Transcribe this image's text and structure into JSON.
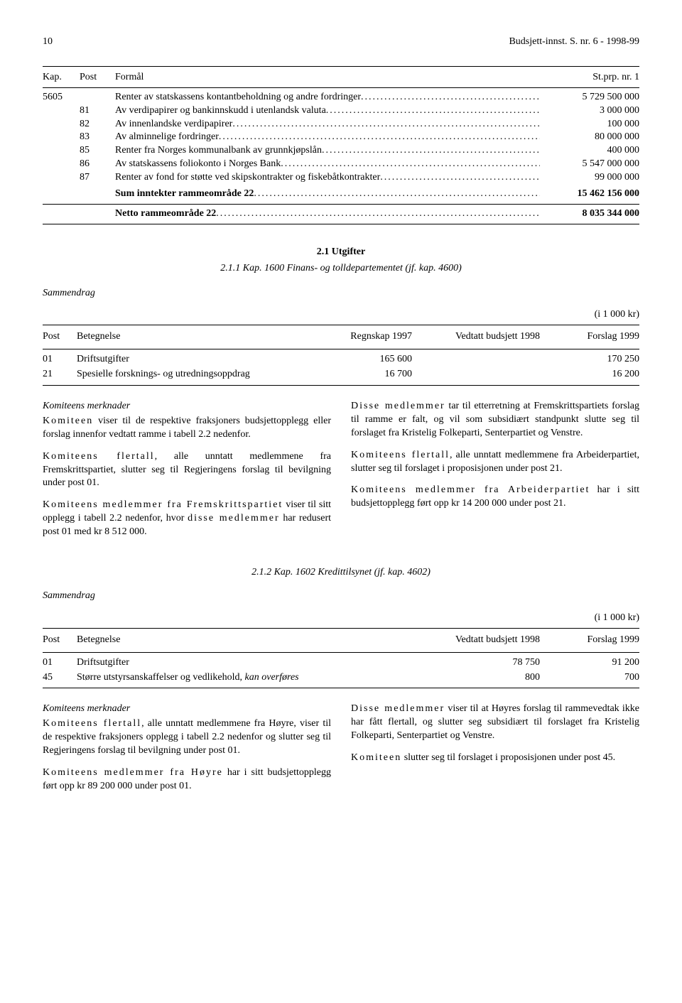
{
  "header": {
    "page_number": "10",
    "doc_title": "Budsjett-innst. S. nr. 6 - 1998-99"
  },
  "budget_table": {
    "columns": {
      "kap": "Kap.",
      "post": "Post",
      "formal": "Formål",
      "stprp": "St.prp. nr. 1"
    },
    "kap_row": {
      "kap": "5605",
      "label": "Renter av statskassens kontantbeholdning og andre fordringer",
      "amount": "5 729 500 000"
    },
    "rows": [
      {
        "post": "81",
        "label": "Av verdipapirer og bankinnskudd i utenlandsk valuta",
        "amount": "3 000 000"
      },
      {
        "post": "82",
        "label": "Av innenlandske verdipapirer",
        "amount": "100 000"
      },
      {
        "post": "83",
        "label": "Av alminnelige fordringer",
        "amount": "80 000 000"
      },
      {
        "post": "85",
        "label": "Renter fra Norges kommunalbank av grunnkjøpslån",
        "amount": "400 000"
      },
      {
        "post": "86",
        "label": "Av statskassens foliokonto i Norges Bank",
        "amount": "5 547 000 000"
      },
      {
        "post": "87",
        "label": "Renter av fond for støtte ved skipskontrakter og fiskebåtkontrakter",
        "amount": "99 000 000"
      }
    ],
    "sum_label": "Sum inntekter rammeområde 22",
    "sum_amount": "15 462 156 000",
    "netto_label": "Netto rammeområde 22",
    "netto_amount": "8 035 344 000"
  },
  "section21": {
    "heading": "2.1 Utgifter",
    "subheading": "2.1.1 Kap. 1600 Finans- og tolldepartementet (jf. kap. 4600)",
    "sammendrag": "Sammendrag",
    "unit": "(i 1 000 kr)",
    "table": {
      "cols": {
        "post": "Post",
        "bet": "Betegnelse",
        "c1": "Regnskap 1997",
        "c2": "Vedtatt budsjett 1998",
        "c3": "Forslag 1999"
      },
      "rows": [
        {
          "post": "01",
          "bet": "Driftsutgifter",
          "c1": "165 600",
          "c2": "",
          "c3": "170 250"
        },
        {
          "post": "21",
          "bet": "Spesielle forsknings- og utredningsoppdrag",
          "c1": "16 700",
          "c2": "",
          "c3": "16 200"
        }
      ]
    },
    "left": {
      "km_title": "Komiteens merknader",
      "p1a": "Komiteen",
      "p1b": " viser til de respektive fraksjoners budsjettopplegg eller forslag innenfor vedtatt ramme i tabell 2.2 nedenfor.",
      "p2a": "Komiteens flertall",
      "p2b": ", alle unntatt medlemmene fra Fremskrittspartiet, slutter seg til Regjeringens forslag til bevilgning under post 01.",
      "p3a": "Komiteens medlemmer fra Frem­skrittspartiet",
      "p3b": " viser til sitt opplegg i tabell 2.2 nedenfor, hvor ",
      "p3c": "disse medlemmer",
      "p3d": " har redusert post 01 med kr 8 512 000."
    },
    "right": {
      "p1a": "Disse medlemmer",
      "p1b": " tar til etterretning at Fremskrittspartiets forslag til ramme er falt, og vil som subsidiært standpunkt slutte seg til forslaget fra Kristelig Folkeparti, Senterpartiet og Venstre.",
      "p2a": "Komiteens flertall",
      "p2b": ", alle unntatt medlemmene fra Arbeiderpartiet, slutter seg til forslaget i proposisjonen under post 21.",
      "p3a": "Komiteens medlemmer fra Arbeiderpar­tiet",
      "p3b": " har i sitt budsjettopplegg ført opp kr 14 200 000 under post 21."
    }
  },
  "section212": {
    "heading": "2.1.2 Kap. 1602 Kredittilsynet (jf. kap. 4602)",
    "sammendrag": "Sammendrag",
    "unit": "(i 1 000 kr)",
    "table": {
      "cols": {
        "post": "Post",
        "bet": "Betegnelse",
        "c2": "Vedtatt budsjett 1998",
        "c3": "Forslag 1999"
      },
      "rows": [
        {
          "post": "01",
          "bet": "Driftsutgifter",
          "c2": "78 750",
          "c3": "91 200"
        },
        {
          "post": "45",
          "bet_a": "Større utstyrsanskaffelser og vedlikehold, ",
          "bet_b": "kan overføres",
          "c2": "800",
          "c3": "700"
        }
      ]
    },
    "left": {
      "km_title": "Komiteens merknader",
      "p1a": "Komiteens flertall",
      "p1b": ", alle unntatt medlemmene fra Høyre, viser til de respektive fraksjoners opplegg i tabell 2.2 nedenfor og slutter seg til Regjeringens forslag til bevilgning under post 01.",
      "p2a": "Komiteens medlemmer fra Høyre",
      "p2b": " har i sitt budsjettopplegg ført opp kr 89 200 000 under post 01."
    },
    "right": {
      "p1a": "Disse medlemmer",
      "p1b": " viser til at Høyres forslag til rammevedtak ikke har fått flertall, og slutter seg subsidiært til forslaget fra Kristelig Folkeparti, Senterpartiet og Venstre.",
      "p2a": "Komiteen",
      "p2b": " slutter seg til forslaget i proposisjonen under post 45."
    }
  },
  "dots": ".........................................................................................................................................................."
}
